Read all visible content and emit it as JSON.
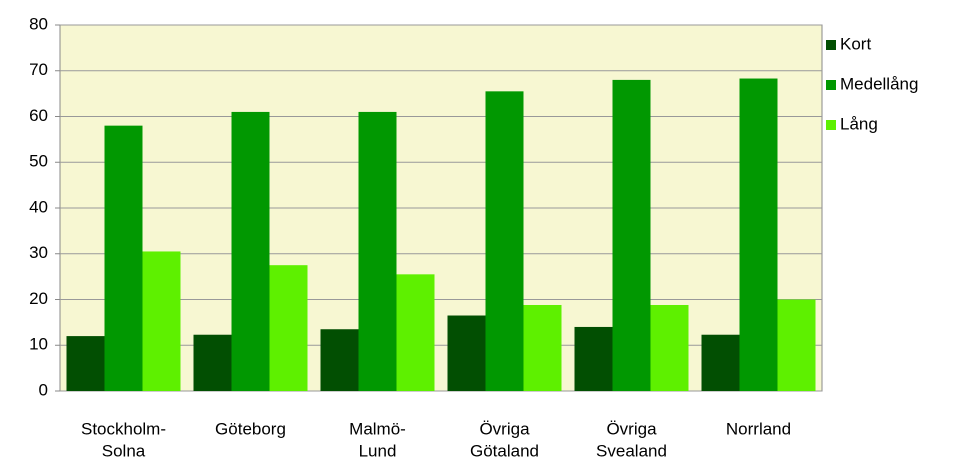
{
  "chart_data": {
    "type": "bar",
    "categories": [
      [
        "Stockholm-",
        "Solna"
      ],
      [
        "Göteborg"
      ],
      [
        "Malmö-",
        "Lund"
      ],
      [
        "Övriga",
        "Götaland"
      ],
      [
        "Övriga",
        "Svealand"
      ],
      [
        "Norrland"
      ]
    ],
    "series": [
      {
        "name": "Kort",
        "color": "#024f02",
        "values": [
          12,
          12.3,
          13.5,
          16.5,
          14,
          12.3
        ]
      },
      {
        "name": "Medellång",
        "color": "#019801",
        "values": [
          58,
          61,
          61,
          65.5,
          68,
          68.3
        ]
      },
      {
        "name": "Lång",
        "color": "#5ef000",
        "values": [
          30.5,
          27.5,
          25.5,
          18.8,
          18.8,
          20
        ]
      }
    ],
    "ylim": [
      0,
      80
    ],
    "yticks": [
      0,
      10,
      20,
      30,
      40,
      50,
      60,
      70,
      80
    ],
    "grid": true,
    "legend": "right"
  }
}
